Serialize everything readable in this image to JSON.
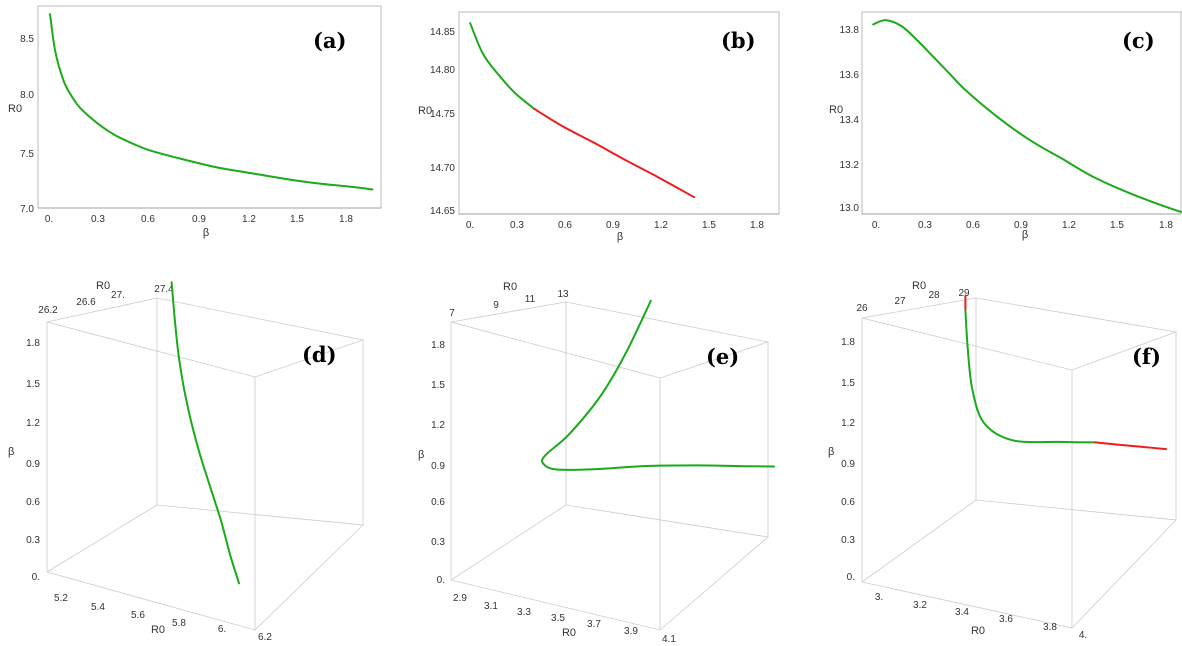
{
  "colors": {
    "green": "#1aaa1a",
    "red": "#ee1c1c"
  },
  "chart_data": [
    {
      "panel": "(a)",
      "type": "line",
      "xlabel": "β",
      "ylabel": "R0",
      "xticks": [
        "0.",
        "0.3",
        "0.6",
        "0.9",
        "1.2",
        "1.5",
        "1.8"
      ],
      "yticks": [
        "7.0",
        "7.5",
        "8.0",
        "8.5"
      ],
      "xlim": [
        -0.05,
        1.95
      ],
      "ylim": [
        7.0,
        8.75
      ],
      "series": [
        {
          "color": "green",
          "points": [
            [
              0.02,
              8.68
            ],
            [
              0.05,
              8.36
            ],
            [
              0.1,
              8.1
            ],
            [
              0.15,
              7.96
            ],
            [
              0.2,
              7.86
            ],
            [
              0.3,
              7.73
            ],
            [
              0.4,
              7.63
            ],
            [
              0.5,
              7.56
            ],
            [
              0.6,
              7.5
            ],
            [
              0.8,
              7.42
            ],
            [
              1.0,
              7.35
            ],
            [
              1.2,
              7.3
            ],
            [
              1.4,
              7.25
            ],
            [
              1.6,
              7.21
            ],
            [
              1.8,
              7.18
            ],
            [
              1.9,
              7.16
            ]
          ]
        }
      ]
    },
    {
      "panel": "(b)",
      "type": "line",
      "xlabel": "β",
      "ylabel": "R0",
      "xticks": [
        "0.",
        "0.3",
        "0.6",
        "0.9",
        "1.2",
        "1.5",
        "1.8"
      ],
      "yticks": [
        "14.65",
        "14.70",
        "14.75",
        "14.80",
        "14.85"
      ],
      "xlim": [
        -0.05,
        1.95
      ],
      "ylim": [
        14.648,
        14.865
      ],
      "series": [
        {
          "color": "green",
          "points": [
            [
              0.02,
              14.853
            ],
            [
              0.1,
              14.82
            ],
            [
              0.2,
              14.797
            ],
            [
              0.3,
              14.778
            ],
            [
              0.42,
              14.761
            ]
          ]
        },
        {
          "color": "red",
          "points": [
            [
              0.42,
              14.761
            ],
            [
              0.6,
              14.742
            ],
            [
              0.8,
              14.724
            ],
            [
              1.0,
              14.705
            ],
            [
              1.2,
              14.687
            ],
            [
              1.42,
              14.666
            ]
          ]
        }
      ]
    },
    {
      "panel": "(c)",
      "type": "line",
      "xlabel": "β",
      "ylabel": "R0",
      "xticks": [
        "0.",
        "0.3",
        "0.6",
        "0.9",
        "1.2",
        "1.5",
        "1.8"
      ],
      "yticks": [
        "13.0",
        "13.2",
        "13.4",
        "13.6",
        "13.8"
      ],
      "xlim": [
        -0.05,
        1.95
      ],
      "ylim": [
        12.9,
        13.88
      ],
      "series": [
        {
          "color": "green",
          "points": [
            [
              0.02,
              13.82
            ],
            [
              0.1,
              13.84
            ],
            [
              0.2,
              13.81
            ],
            [
              0.3,
              13.74
            ],
            [
              0.4,
              13.66
            ],
            [
              0.5,
              13.58
            ],
            [
              0.6,
              13.5
            ],
            [
              0.8,
              13.37
            ],
            [
              1.0,
              13.26
            ],
            [
              1.2,
              13.17
            ],
            [
              1.4,
              13.08
            ],
            [
              1.6,
              13.01
            ],
            [
              1.8,
              12.95
            ],
            [
              1.95,
              12.91
            ]
          ]
        }
      ]
    },
    {
      "panel": "(d)",
      "type": "line",
      "xlabel": "R0",
      "ylabel": "β",
      "zlabel": "R0",
      "xticks": [
        "5.2",
        "5.4",
        "5.6",
        "5.8",
        "6.",
        "6.2"
      ],
      "yticks": [
        "0.",
        "0.3",
        "0.6",
        "0.9",
        "1.2",
        "1.5",
        "1.8"
      ],
      "zticks": [
        "26.2",
        "26.6",
        "27.",
        "27.4"
      ],
      "series": [
        {
          "color": "green",
          "points": [
            [
              5.82,
              1.86
            ],
            [
              5.84,
              1.6
            ],
            [
              5.86,
              1.4
            ],
            [
              5.89,
              1.2
            ],
            [
              5.93,
              1.0
            ],
            [
              5.98,
              0.8
            ],
            [
              6.04,
              0.6
            ],
            [
              6.1,
              0.4
            ],
            [
              6.15,
              0.2
            ],
            [
              6.2,
              0.03
            ]
          ]
        }
      ]
    },
    {
      "panel": "(e)",
      "type": "line",
      "xlabel": "R0",
      "ylabel": "β",
      "zlabel": "R0",
      "xticks": [
        "2.9",
        "3.1",
        "3.3",
        "3.5",
        "3.7",
        "3.9",
        "4.1"
      ],
      "yticks": [
        "0.",
        "0.3",
        "0.6",
        "0.9",
        "1.2",
        "1.5",
        "1.8"
      ],
      "zticks": [
        "7",
        "9",
        "11",
        "13"
      ],
      "series": [
        {
          "color": "green",
          "points": [
            [
              3.62,
              1.88
            ],
            [
              3.52,
              1.5
            ],
            [
              3.42,
              1.2
            ],
            [
              3.3,
              0.95
            ],
            [
              3.21,
              0.82
            ],
            [
              3.2,
              0.76
            ],
            [
              3.25,
              0.7
            ],
            [
              3.4,
              0.66
            ],
            [
              3.6,
              0.63
            ],
            [
              3.8,
              0.58
            ],
            [
              4.0,
              0.52
            ],
            [
              4.1,
              0.49
            ]
          ]
        }
      ]
    },
    {
      "panel": "(f)",
      "type": "line",
      "xlabel": "R0",
      "ylabel": "β",
      "zlabel": "R0",
      "xticks": [
        "3.",
        "3.2",
        "3.4",
        "3.6",
        "3.8",
        "4."
      ],
      "yticks": [
        "0.",
        "0.3",
        "0.6",
        "0.9",
        "1.2",
        "1.5",
        "1.8"
      ],
      "zticks": [
        "26",
        "27",
        "28",
        "29"
      ],
      "series": [
        {
          "color": "red",
          "points": [
            [
              3.4,
              1.88
            ],
            [
              3.4,
              1.78
            ]
          ]
        },
        {
          "color": "green",
          "points": [
            [
              3.4,
              1.78
            ],
            [
              3.41,
              1.5
            ],
            [
              3.43,
              1.2
            ],
            [
              3.48,
              0.95
            ],
            [
              3.6,
              0.8
            ],
            [
              3.8,
              0.74
            ],
            [
              3.95,
              0.7
            ]
          ]
        },
        {
          "color": "red",
          "points": [
            [
              3.95,
              0.7
            ],
            [
              4.05,
              0.66
            ],
            [
              4.15,
              0.62
            ],
            [
              4.25,
              0.58
            ]
          ]
        }
      ]
    }
  ]
}
